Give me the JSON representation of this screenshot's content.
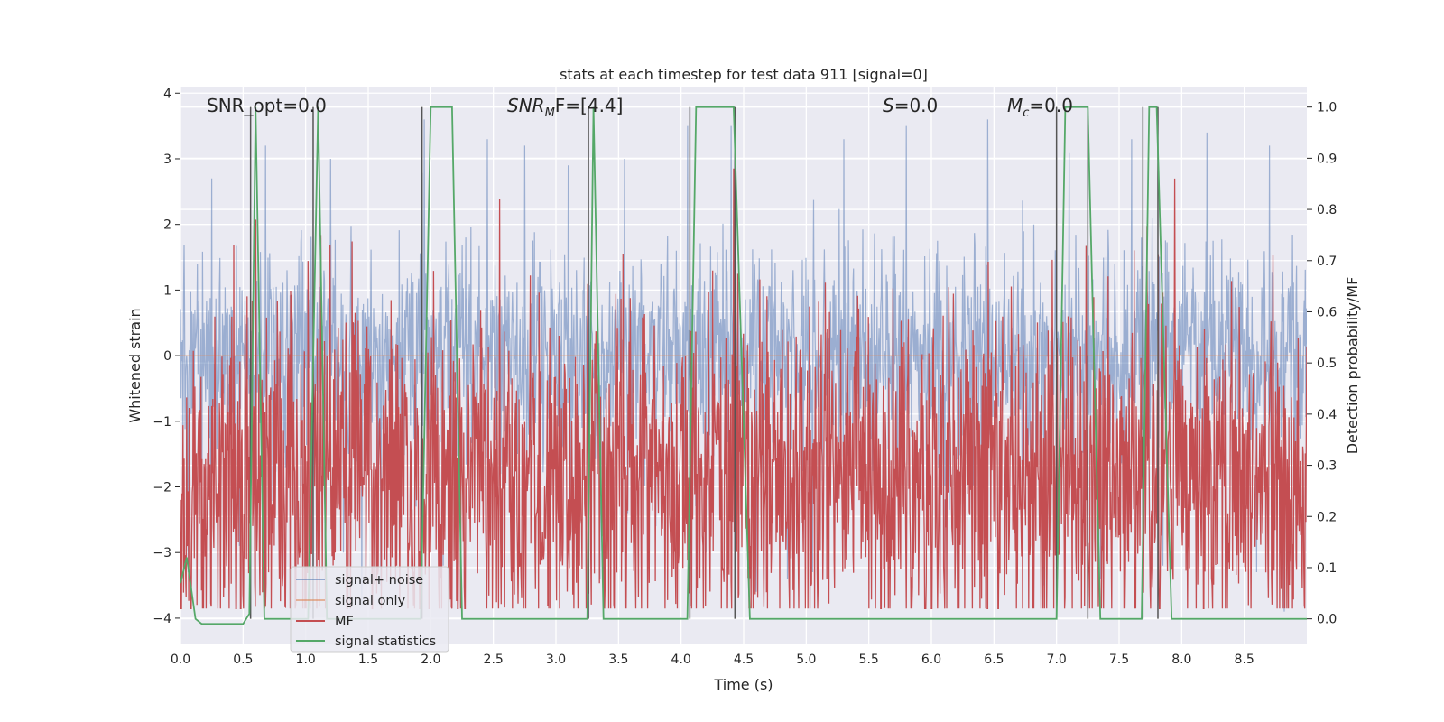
{
  "chart_data": {
    "type": "line",
    "title": "stats at each timestep for test data 911 [signal=0]",
    "xlabel": "Time (s)",
    "ylabel": "Whitened strain",
    "y2label": "Detection probability/MF",
    "xlim": [
      0,
      9.0
    ],
    "ylim": [
      -4.4,
      4.1
    ],
    "y2lim": [
      -0.05,
      1.04
    ],
    "x_ticks": [
      0.0,
      0.5,
      1.0,
      1.5,
      2.0,
      2.5,
      3.0,
      3.5,
      4.0,
      4.5,
      5.0,
      5.5,
      6.0,
      6.5,
      7.0,
      7.5,
      8.0,
      8.5
    ],
    "y_ticks": [
      4,
      3,
      2,
      1,
      0,
      -1,
      -2,
      -3,
      -4
    ],
    "y2_ticks": [
      1.0,
      0.9,
      0.8,
      0.7,
      0.6,
      0.5,
      0.4,
      0.3,
      0.2,
      0.1,
      0.0
    ],
    "grid": true,
    "legend_position": "lower-left",
    "colors": {
      "background": "#eaeaf2",
      "noise": "#4c72b0",
      "signal": "#dd8452",
      "mf": "#c44e52",
      "stats": "#55a868",
      "vline": "#555555"
    },
    "annotations": [
      {
        "label_plain": "SNR_opt=0.0",
        "x": 0.19
      },
      {
        "label_italic": "SNR",
        "label_sub": "M",
        "label_rest": "F=[4.4]",
        "x": 2.6
      },
      {
        "label_italic": "S",
        "label_rest": "=0.0",
        "x": 5.6
      },
      {
        "label_italic": "M",
        "label_sub": "c",
        "label_rest": "=0.0",
        "x": 6.6
      }
    ],
    "series": [
      {
        "name": "signal+ noise",
        "kind": "noise",
        "sigma": 0.82,
        "peaks": [
          [
            0.06,
            -3.3
          ],
          [
            0.25,
            2.7
          ],
          [
            0.47,
            -2.9
          ],
          [
            0.68,
            3.2
          ],
          [
            0.93,
            -2.5
          ],
          [
            1.2,
            3.0
          ],
          [
            1.3,
            -3.0
          ],
          [
            1.45,
            -3.8
          ],
          [
            1.6,
            -3.5
          ],
          [
            1.95,
            3.6
          ],
          [
            2.1,
            -3.2
          ],
          [
            2.45,
            3.3
          ],
          [
            2.75,
            3.2
          ],
          [
            2.95,
            -2.6
          ],
          [
            3.1,
            2.9
          ],
          [
            3.35,
            -3.4
          ],
          [
            3.55,
            3.0
          ],
          [
            3.8,
            -2.6
          ],
          [
            4.05,
            3.5
          ],
          [
            4.2,
            -3.0
          ],
          [
            4.4,
            3.5
          ],
          [
            4.6,
            -3.6
          ],
          [
            4.85,
            -3.4
          ],
          [
            5.05,
            -3.3
          ],
          [
            5.3,
            3.3
          ],
          [
            5.55,
            -3.2
          ],
          [
            5.8,
            3.5
          ],
          [
            6.1,
            -3.0
          ],
          [
            6.45,
            3.6
          ],
          [
            6.9,
            -3.5
          ],
          [
            7.1,
            3.1
          ],
          [
            7.35,
            -3.4
          ],
          [
            7.6,
            3.3
          ],
          [
            7.85,
            -3.2
          ],
          [
            8.2,
            3.4
          ],
          [
            8.6,
            -3.3
          ],
          [
            8.7,
            3.2
          ],
          [
            8.82,
            -3.9
          ]
        ]
      },
      {
        "name": "signal only",
        "kind": "flat",
        "y": 0
      },
      {
        "name": "MF",
        "kind": "mf",
        "mean": 0.28,
        "amp": 0.17,
        "peaks": [
          [
            0.6,
            0.78
          ],
          [
            1.12,
            0.75
          ],
          [
            2.02,
            0.68
          ],
          [
            2.55,
            0.82
          ],
          [
            4.42,
            0.88
          ],
          [
            7.05,
            0.58
          ],
          [
            7.62,
            0.72
          ],
          [
            8.4,
            0.66
          ]
        ]
      },
      {
        "name": "signal statistics",
        "kind": "steps",
        "points": [
          [
            0.0,
            0.07
          ],
          [
            0.05,
            0.12
          ],
          [
            0.12,
            0.0
          ],
          [
            0.17,
            -0.01
          ],
          [
            0.5,
            -0.01
          ],
          [
            0.55,
            0.01
          ],
          [
            0.6,
            1.0
          ],
          [
            0.67,
            0.0
          ],
          [
            1.02,
            0.0
          ],
          [
            1.1,
            1.0
          ],
          [
            1.17,
            0.0
          ],
          [
            1.92,
            0.0
          ],
          [
            2.0,
            1.0
          ],
          [
            2.17,
            1.0
          ],
          [
            2.25,
            0.0
          ],
          [
            3.25,
            0.0
          ],
          [
            3.3,
            1.0
          ],
          [
            3.38,
            0.0
          ],
          [
            4.05,
            0.0
          ],
          [
            4.12,
            1.0
          ],
          [
            4.42,
            1.0
          ],
          [
            4.55,
            0.0
          ],
          [
            7.0,
            0.0
          ],
          [
            7.07,
            1.0
          ],
          [
            7.25,
            1.0
          ],
          [
            7.35,
            0.0
          ],
          [
            7.68,
            0.0
          ],
          [
            7.74,
            1.0
          ],
          [
            7.8,
            1.0
          ],
          [
            7.92,
            0.0
          ],
          [
            9.0,
            0.0
          ]
        ]
      }
    ],
    "vlines": [
      0.56,
      1.06,
      1.93,
      3.26,
      4.07,
      4.43,
      7.0,
      7.25,
      7.69,
      7.81
    ]
  },
  "legend": {
    "items": [
      {
        "label": "signal+ noise",
        "color": "#4c72b0",
        "opacity": 0.55
      },
      {
        "label": "signal only",
        "color": "#dd8452",
        "opacity": 0.55
      },
      {
        "label": "MF",
        "color": "#c44e52",
        "opacity": 1
      },
      {
        "label": "signal statistics",
        "color": "#55a868",
        "opacity": 1
      }
    ]
  }
}
